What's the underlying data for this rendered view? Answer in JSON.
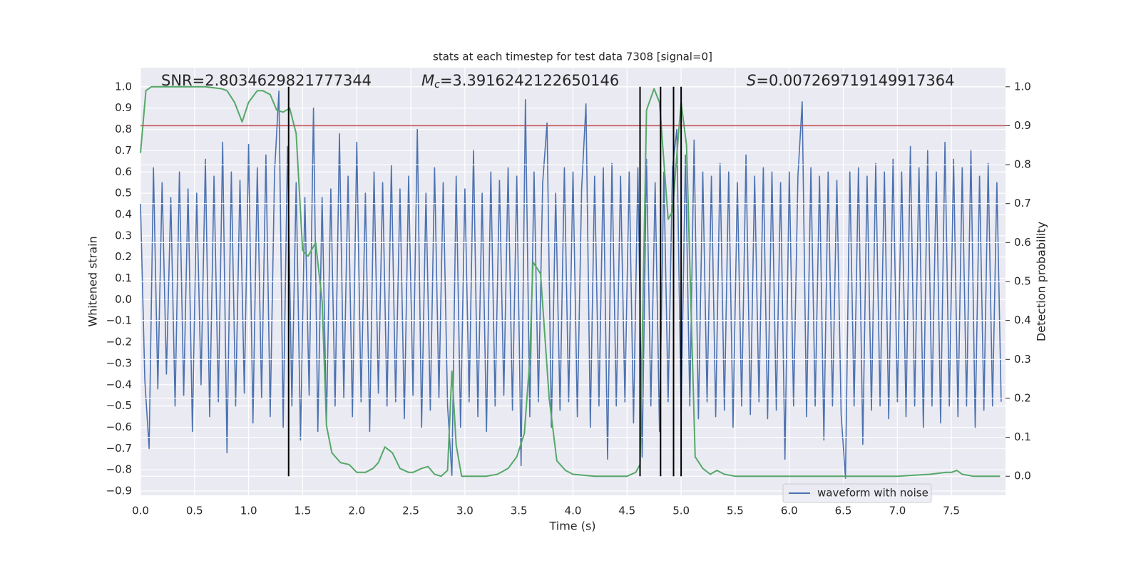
{
  "chart_data": {
    "type": "line",
    "title": "stats at each timestep for test data 7308 [signal=0]",
    "xlabel": "Time (s)",
    "ylabel": "Whitened strain",
    "y2label": "Detection probability",
    "annotations": [
      {
        "text": "SNR=2.8034629821777344"
      },
      {
        "symbol": "M",
        "subscript": "c",
        "text": "=3.3916242122650146"
      },
      {
        "symbol": "S",
        "text": "=0.007269719149917364"
      }
    ],
    "xlim": [
      0,
      8
    ],
    "ylim": [
      -0.92,
      1.09
    ],
    "y2lim": [
      -0.049,
      1.049
    ],
    "xticks": [
      {
        "value": 0,
        "label": "0.0"
      },
      {
        "value": 0.5,
        "label": "0.5"
      },
      {
        "value": 1,
        "label": "1.0"
      },
      {
        "value": 1.5,
        "label": "1.5"
      },
      {
        "value": 2,
        "label": "2.0"
      },
      {
        "value": 2.5,
        "label": "2.5"
      },
      {
        "value": 3,
        "label": "3.0"
      },
      {
        "value": 3.5,
        "label": "3.5"
      },
      {
        "value": 4,
        "label": "4.0"
      },
      {
        "value": 4.5,
        "label": "4.5"
      },
      {
        "value": 5,
        "label": "5.0"
      },
      {
        "value": 5.5,
        "label": "5.5"
      },
      {
        "value": 6,
        "label": "6.0"
      },
      {
        "value": 6.5,
        "label": "6.5"
      },
      {
        "value": 7,
        "label": "7.0"
      },
      {
        "value": 7.5,
        "label": "7.5"
      }
    ],
    "yticks": [
      {
        "value": -0.9,
        "label": "−0.9"
      },
      {
        "value": -0.8,
        "label": "−0.8"
      },
      {
        "value": -0.7,
        "label": "−0.7"
      },
      {
        "value": -0.6,
        "label": "−0.6"
      },
      {
        "value": -0.5,
        "label": "−0.5"
      },
      {
        "value": -0.4,
        "label": "−0.4"
      },
      {
        "value": -0.3,
        "label": "−0.3"
      },
      {
        "value": -0.2,
        "label": "−0.2"
      },
      {
        "value": -0.1,
        "label": "−0.1"
      },
      {
        "value": 0,
        "label": "0.0"
      },
      {
        "value": 0.1,
        "label": "0.1"
      },
      {
        "value": 0.2,
        "label": "0.2"
      },
      {
        "value": 0.3,
        "label": "0.3"
      },
      {
        "value": 0.4,
        "label": "0.4"
      },
      {
        "value": 0.5,
        "label": "0.5"
      },
      {
        "value": 0.6,
        "label": "0.6"
      },
      {
        "value": 0.7,
        "label": "0.7"
      },
      {
        "value": 0.8,
        "label": "0.8"
      },
      {
        "value": 0.9,
        "label": "0.9"
      },
      {
        "value": 1,
        "label": "1.0"
      }
    ],
    "y2ticks": [
      {
        "value": 0,
        "label": "0.0"
      },
      {
        "value": 0.1,
        "label": "0.1"
      },
      {
        "value": 0.2,
        "label": "0.2"
      },
      {
        "value": 0.3,
        "label": "0.3"
      },
      {
        "value": 0.4,
        "label": "0.4"
      },
      {
        "value": 0.5,
        "label": "0.5"
      },
      {
        "value": 0.6,
        "label": "0.6"
      },
      {
        "value": 0.7,
        "label": "0.7"
      },
      {
        "value": 0.8,
        "label": "0.8"
      },
      {
        "value": 0.9,
        "label": "0.9"
      },
      {
        "value": 1,
        "label": "1.0"
      }
    ],
    "grid": true,
    "legend": "lower right",
    "hline_y2": {
      "value": 0.9,
      "color": "#c44e52"
    },
    "vlines": {
      "x": [
        1.37,
        4.62,
        4.81,
        4.93,
        5.0
      ],
      "y2range": [
        0,
        1
      ],
      "color": "#000000"
    },
    "series": [
      {
        "name": "waveform with noise",
        "color": "#4c72b0",
        "x": [
          0,
          0.04,
          0.08,
          0.12,
          0.16,
          0.2,
          0.24,
          0.28,
          0.32,
          0.36,
          0.4,
          0.44,
          0.48,
          0.52,
          0.56,
          0.6,
          0.64,
          0.68,
          0.72,
          0.76,
          0.8,
          0.84,
          0.88,
          0.92,
          0.96,
          1,
          1.04,
          1.08,
          1.12,
          1.16,
          1.2,
          1.24,
          1.28,
          1.32,
          1.36,
          1.4,
          1.44,
          1.48,
          1.52,
          1.56,
          1.6,
          1.64,
          1.68,
          1.72,
          1.76,
          1.8,
          1.84,
          1.88,
          1.92,
          1.96,
          2,
          2.04,
          2.08,
          2.12,
          2.16,
          2.2,
          2.24,
          2.28,
          2.32,
          2.36,
          2.4,
          2.44,
          2.48,
          2.52,
          2.56,
          2.6,
          2.64,
          2.68,
          2.72,
          2.76,
          2.8,
          2.84,
          2.88,
          2.92,
          2.96,
          3,
          3.04,
          3.08,
          3.12,
          3.16,
          3.2,
          3.24,
          3.28,
          3.32,
          3.36,
          3.4,
          3.44,
          3.48,
          3.52,
          3.56,
          3.6,
          3.64,
          3.68,
          3.72,
          3.76,
          3.8,
          3.84,
          3.88,
          3.92,
          3.96,
          4,
          4.04,
          4.08,
          4.12,
          4.16,
          4.2,
          4.24,
          4.28,
          4.32,
          4.36,
          4.4,
          4.44,
          4.48,
          4.52,
          4.56,
          4.6,
          4.64,
          4.68,
          4.72,
          4.76,
          4.8,
          4.84,
          4.88,
          4.92,
          4.96,
          5,
          5.04,
          5.08,
          5.12,
          5.16,
          5.2,
          5.24,
          5.28,
          5.32,
          5.36,
          5.4,
          5.44,
          5.48,
          5.52,
          5.56,
          5.6,
          5.64,
          5.68,
          5.72,
          5.76,
          5.8,
          5.84,
          5.88,
          5.92,
          5.96,
          6,
          6.04,
          6.08,
          6.12,
          6.16,
          6.2,
          6.24,
          6.28,
          6.32,
          6.36,
          6.4,
          6.44,
          6.48,
          6.52,
          6.56,
          6.6,
          6.64,
          6.68,
          6.72,
          6.76,
          6.8,
          6.84,
          6.88,
          6.92,
          6.96,
          7,
          7.04,
          7.08,
          7.12,
          7.16,
          7.2,
          7.24,
          7.28,
          7.32,
          7.36,
          7.4,
          7.44,
          7.48,
          7.52,
          7.56,
          7.6,
          7.64,
          7.68,
          7.72,
          7.76,
          7.8,
          7.84,
          7.88,
          7.92,
          7.96
        ],
        "values": [
          0.45,
          -0.38,
          -0.7,
          0.62,
          -0.42,
          0.55,
          -0.35,
          0.48,
          -0.5,
          0.6,
          -0.45,
          0.52,
          -0.62,
          0.5,
          -0.4,
          0.66,
          -0.55,
          0.58,
          -0.48,
          0.74,
          -0.72,
          0.6,
          -0.5,
          0.56,
          -0.44,
          0.73,
          -0.58,
          0.62,
          -0.46,
          0.68,
          -0.55,
          0.6,
          0.98,
          -0.6,
          0.72,
          -0.5,
          0.55,
          -0.66,
          0.48,
          -0.45,
          0.9,
          -0.62,
          0.48,
          -0.58,
          0.52,
          -0.5,
          0.78,
          -0.46,
          0.58,
          -0.55,
          0.74,
          -0.48,
          0.5,
          -0.62,
          0.6,
          -0.44,
          0.55,
          -0.5,
          0.63,
          -0.48,
          0.52,
          -0.56,
          0.58,
          -0.45,
          0.8,
          -0.6,
          0.5,
          -0.52,
          0.62,
          -0.46,
          0.55,
          -0.5,
          -0.83,
          0.58,
          -0.6,
          0.52,
          -0.48,
          0.7,
          -0.55,
          0.5,
          -0.62,
          0.6,
          -0.5,
          0.56,
          -0.45,
          0.62,
          -0.52,
          0.58,
          -0.78,
          0.94,
          -0.55,
          0.6,
          -0.48,
          0.55,
          0.83,
          -0.6,
          0.5,
          -0.52,
          0.62,
          -0.48,
          0.6,
          -0.55,
          0.52,
          0.92,
          -0.6,
          0.58,
          -0.5,
          0.62,
          -0.75,
          0.64,
          -0.5,
          0.58,
          -0.48,
          0.6,
          -0.58,
          0.62,
          -0.74,
          0.66,
          -0.5,
          0.55,
          -0.62,
          0.6,
          -0.48,
          0.62,
          0.8,
          -0.55,
          0.68,
          -0.5,
          0.75,
          -0.56,
          0.6,
          -0.48,
          0.58,
          -0.55,
          0.64,
          -0.52,
          0.6,
          -0.6,
          0.55,
          -0.5,
          0.68,
          -0.54,
          0.58,
          -0.48,
          0.62,
          -0.56,
          0.6,
          -0.52,
          0.55,
          -0.75,
          0.6,
          -0.5,
          0.58,
          0.93,
          -0.55,
          0.62,
          -0.5,
          0.58,
          -0.66,
          0.6,
          -0.5,
          0.56,
          -0.54,
          -0.84,
          0.6,
          -0.5,
          0.62,
          -0.68,
          0.58,
          -0.52,
          0.64,
          -0.5,
          0.6,
          -0.56,
          0.66,
          -0.48,
          0.6,
          -0.55,
          0.72,
          -0.5,
          0.62,
          -0.6,
          0.7,
          -0.5,
          0.6,
          -0.58,
          0.74,
          -0.5,
          0.66,
          -0.55,
          0.62,
          -0.5,
          0.7,
          -0.6,
          0.58,
          -0.52,
          0.64,
          -0.5,
          0.55,
          -0.48
        ]
      },
      {
        "color": "#55a868",
        "axis": "y2",
        "x": [
          0,
          0.05,
          0.1,
          0.2,
          0.4,
          0.6,
          0.75,
          0.8,
          0.87,
          0.94,
          1,
          1.08,
          1.13,
          1.2,
          1.26,
          1.32,
          1.38,
          1.44,
          1.5,
          1.55,
          1.62,
          1.68,
          1.72,
          1.77,
          1.85,
          1.93,
          2,
          2.08,
          2.15,
          2.2,
          2.26,
          2.33,
          2.4,
          2.48,
          2.52,
          2.6,
          2.66,
          2.72,
          2.78,
          2.84,
          2.88,
          2.92,
          2.97,
          3.05,
          3.2,
          3.3,
          3.4,
          3.48,
          3.55,
          3.6,
          3.63,
          3.7,
          3.78,
          3.85,
          3.93,
          4,
          4.2,
          4.5,
          4.58,
          4.62,
          4.68,
          4.75,
          4.8,
          4.88,
          4.92,
          4.97,
          5,
          5.05,
          5.13,
          5.2,
          5.27,
          5.33,
          5.4,
          5.5,
          5.6,
          6,
          7,
          7.3,
          7.45,
          7.5,
          7.55,
          7.6,
          7.7,
          7.95
        ],
        "values": [
          0.83,
          0.99,
          1,
          1,
          1,
          1,
          0.995,
          0.99,
          0.96,
          0.91,
          0.96,
          0.99,
          0.99,
          0.98,
          0.94,
          0.935,
          0.945,
          0.88,
          0.58,
          0.565,
          0.6,
          0.45,
          0.13,
          0.06,
          0.035,
          0.03,
          0.01,
          0.01,
          0.02,
          0.035,
          0.075,
          0.06,
          0.02,
          0.01,
          0.01,
          0.02,
          0.025,
          0.005,
          0,
          0.015,
          0.27,
          0.08,
          0,
          0,
          0,
          0.005,
          0.02,
          0.05,
          0.11,
          0.3,
          0.55,
          0.52,
          0.2,
          0.04,
          0.015,
          0.005,
          0,
          0,
          0.01,
          0.03,
          0.94,
          0.995,
          0.96,
          0.66,
          0.68,
          0.86,
          0.96,
          0.85,
          0.05,
          0.02,
          0.005,
          0.015,
          0.005,
          0,
          0,
          0,
          0,
          0.005,
          0.01,
          0.01,
          0.015,
          0.005,
          0,
          0
        ]
      }
    ]
  }
}
